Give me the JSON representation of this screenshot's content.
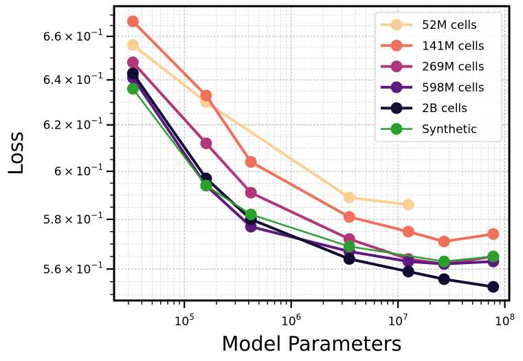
{
  "chart_data": {
    "type": "line",
    "title": "",
    "xlabel": "Model Parameters",
    "ylabel": "Loss",
    "xscale": "log",
    "yscale": "log",
    "xlim": [
      22000,
      110000000
    ],
    "ylim": [
      0.5477,
      0.6742
    ],
    "grid": true,
    "legend_position": "top-right",
    "x_ticks": [
      {
        "value": 100000,
        "base": "10",
        "exp": "5"
      },
      {
        "value": 1000000,
        "base": "10",
        "exp": "6"
      },
      {
        "value": 10000000,
        "base": "10",
        "exp": "7"
      },
      {
        "value": 100000000,
        "base": "10",
        "exp": "8"
      }
    ],
    "y_ticks": [
      {
        "value": 0.56,
        "mantissa": "5.6",
        "base": "10",
        "exp": "−1"
      },
      {
        "value": 0.58,
        "mantissa": "5.8",
        "base": "10",
        "exp": "−1"
      },
      {
        "value": 0.6,
        "mantissa": "6",
        "base": "10",
        "exp": "−1"
      },
      {
        "value": 0.62,
        "mantissa": "6.2",
        "base": "10",
        "exp": "−1"
      },
      {
        "value": 0.64,
        "mantissa": "6.4",
        "base": "10",
        "exp": "−1"
      },
      {
        "value": 0.66,
        "mantissa": "6.6",
        "base": "10",
        "exp": "−1"
      }
    ],
    "series": [
      {
        "name": "52M cells",
        "color": "#fcd094",
        "x": [
          33000,
          160000,
          3500000,
          12500000
        ],
        "y": [
          0.656,
          0.63,
          0.589,
          0.586
        ]
      },
      {
        "name": "141M cells",
        "color": "#f1705b",
        "x": [
          33000,
          160000,
          420000,
          3500000,
          12500000,
          27000000,
          78000000
        ],
        "y": [
          0.667,
          0.633,
          0.604,
          0.581,
          0.575,
          0.571,
          0.574
        ]
      },
      {
        "name": "269M cells",
        "color": "#b4367a",
        "x": [
          33000,
          160000,
          420000,
          3500000,
          12500000,
          27000000,
          78000000
        ],
        "y": [
          0.648,
          0.612,
          0.591,
          0.572,
          0.564,
          0.562,
          0.565
        ]
      },
      {
        "name": "598M cells",
        "color": "#5e1a80",
        "x": [
          33000,
          160000,
          420000,
          3500000,
          12500000,
          27000000,
          78000000
        ],
        "y": [
          0.641,
          0.594,
          0.577,
          0.567,
          0.563,
          0.562,
          0.563
        ]
      },
      {
        "name": "2B cells",
        "color": "#140e36",
        "x": [
          33000,
          160000,
          420000,
          3500000,
          12500000,
          27000000,
          78000000
        ],
        "y": [
          0.643,
          0.597,
          0.58,
          0.564,
          0.559,
          0.556,
          0.553
        ]
      },
      {
        "name": "Synthetic",
        "color": "#2ca02c",
        "x": [
          33000,
          160000,
          420000,
          3500000,
          27000000,
          78000000
        ],
        "y": [
          0.636,
          0.594,
          0.582,
          0.569,
          0.563,
          0.565
        ]
      }
    ]
  }
}
